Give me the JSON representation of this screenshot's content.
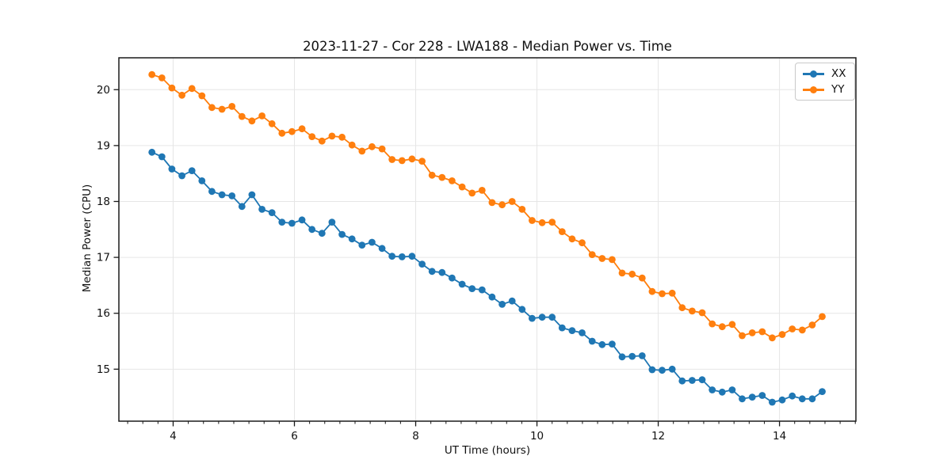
{
  "chart_data": {
    "type": "line",
    "title": "2023-11-27 - Cor 228 - LWA188 - Median Power vs. Time",
    "xlabel": "UT Time (hours)",
    "ylabel": "Median Power (CPU)",
    "xlim": [
      3.105,
      15.26
    ],
    "ylim": [
      14.07,
      20.57
    ],
    "x_major_ticks": [
      4,
      6,
      8,
      10,
      12,
      14
    ],
    "x_minor_tick_step": 0.25,
    "y_major_ticks": [
      15,
      16,
      17,
      18,
      19,
      20
    ],
    "grid": true,
    "grid_color": "#e6e6e6",
    "axis_color": "#1a1a1a",
    "legend_position": "upper right",
    "marker": "circle",
    "x": [
      3.65,
      3.815,
      3.98,
      4.145,
      4.31,
      4.475,
      4.64,
      4.805,
      4.97,
      5.135,
      5.3,
      5.465,
      5.63,
      5.795,
      5.96,
      6.125,
      6.29,
      6.455,
      6.62,
      6.785,
      6.95,
      7.115,
      7.28,
      7.445,
      7.61,
      7.775,
      7.94,
      8.105,
      8.27,
      8.435,
      8.6,
      8.765,
      8.93,
      9.095,
      9.26,
      9.425,
      9.59,
      9.755,
      9.92,
      10.085,
      10.25,
      10.415,
      10.58,
      10.745,
      10.91,
      11.075,
      11.24,
      11.405,
      11.57,
      11.735,
      11.9,
      12.065,
      12.23,
      12.395,
      12.56,
      12.725,
      12.89,
      13.055,
      13.22,
      13.385,
      13.55,
      13.715,
      13.88,
      14.045,
      14.21,
      14.375,
      14.54,
      14.705
    ],
    "series": [
      {
        "name": "XX",
        "color": "#1f77b4",
        "values": [
          18.88,
          18.8,
          18.58,
          18.46,
          18.55,
          18.37,
          18.18,
          18.12,
          18.1,
          17.91,
          18.12,
          17.86,
          17.8,
          17.63,
          17.61,
          17.67,
          17.5,
          17.43,
          17.63,
          17.41,
          17.33,
          17.22,
          17.27,
          17.16,
          17.02,
          17.01,
          17.02,
          16.88,
          16.75,
          16.73,
          16.63,
          16.52,
          16.44,
          16.42,
          16.29,
          16.16,
          16.22,
          16.07,
          15.91,
          15.93,
          15.93,
          15.74,
          15.69,
          15.65,
          15.5,
          15.44,
          15.45,
          15.22,
          15.23,
          15.24,
          14.99,
          14.98,
          15.0,
          14.79,
          14.8,
          14.81,
          14.63,
          14.59,
          14.63,
          14.47,
          14.5,
          14.53,
          14.41,
          14.45,
          14.52,
          14.47,
          14.47,
          14.6
        ]
      },
      {
        "name": "YY",
        "color": "#ff7f0e",
        "values": [
          20.27,
          20.21,
          20.03,
          19.9,
          20.02,
          19.89,
          19.68,
          19.65,
          19.7,
          19.52,
          19.44,
          19.53,
          19.39,
          19.22,
          19.25,
          19.3,
          19.16,
          19.08,
          19.17,
          19.15,
          19.01,
          18.9,
          18.98,
          18.94,
          18.75,
          18.73,
          18.76,
          18.72,
          18.47,
          18.43,
          18.37,
          18.26,
          18.15,
          18.2,
          17.98,
          17.94,
          18.0,
          17.86,
          17.66,
          17.62,
          17.63,
          17.46,
          17.33,
          17.26,
          17.05,
          16.98,
          16.96,
          16.72,
          16.7,
          16.63,
          16.39,
          16.35,
          16.36,
          16.1,
          16.04,
          16.01,
          15.81,
          15.76,
          15.8,
          15.6,
          15.65,
          15.67,
          15.56,
          15.62,
          15.72,
          15.7,
          15.79,
          15.94
        ]
      }
    ]
  }
}
